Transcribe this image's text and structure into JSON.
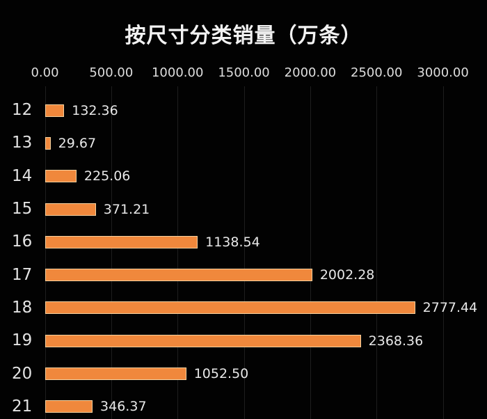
{
  "chart_data": {
    "type": "bar",
    "orientation": "horizontal",
    "title": "按尺寸分类销量（万条）",
    "categories": [
      "12",
      "13",
      "14",
      "15",
      "16",
      "17",
      "18",
      "19",
      "20",
      "21"
    ],
    "values": [
      132.36,
      29.67,
      225.06,
      371.21,
      1138.54,
      2002.28,
      2777.44,
      2368.36,
      1052.5,
      346.37
    ],
    "value_labels": [
      "132.36",
      "29.67",
      "225.06",
      "371.21",
      "1138.54",
      "2002.28",
      "2777.44",
      "2368.36",
      "1052.50",
      "346.37"
    ],
    "x_tick_labels": [
      "0.00",
      "500.00",
      "1000.00",
      "1500.00",
      "2000.00",
      "2500.00",
      "3000.00"
    ],
    "x_tick_values": [
      0,
      500,
      1000,
      1500,
      2000,
      2500,
      3000
    ],
    "xlim": [
      0,
      3000
    ],
    "xlabel": "",
    "ylabel": "",
    "grid": "vertical-on",
    "legend": "none",
    "axis_position": "top",
    "colors": {
      "background": "#020202",
      "bar_fill": "#f0883c",
      "bar_border": "#f6d2a0",
      "text": "#e8e8e8",
      "gridline": "#1e1e1e"
    }
  }
}
